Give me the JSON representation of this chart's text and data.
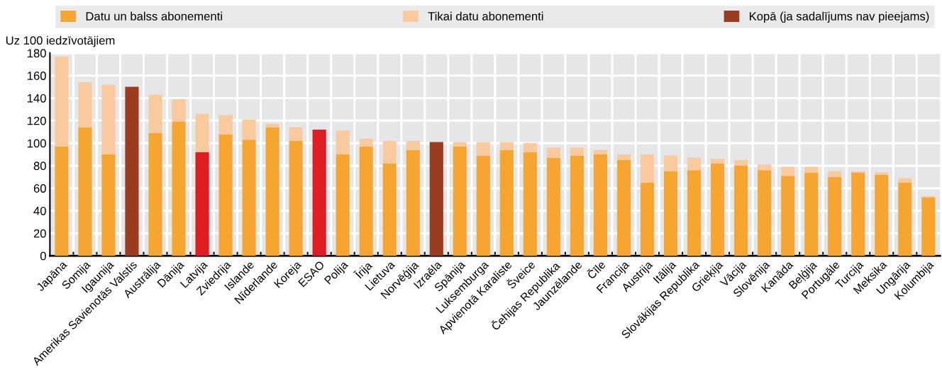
{
  "chart_data": {
    "type": "bar",
    "stacked": true,
    "ylabel": "Uz 100 iedzīvotājiem",
    "categories": [
      "Japāna",
      "Somija",
      "Igaunija",
      "Amerikas Savienotās Valstis",
      "Austrālija",
      "Dānija",
      "Latvija",
      "Zviedrija",
      "Islande",
      "Nīderlande",
      "Koreja",
      "ESAO",
      "Polija",
      "Īrija",
      "Lietuva",
      "Norvēģija",
      "Izraēla",
      "Spānija",
      "Luksemburga",
      "Apvienotā Karaliste",
      "Šveice",
      "Čehijas Republika",
      "Jaunzēlande",
      "Čīle",
      "Francija",
      "Austrija",
      "Itālija",
      "Slovākijas Republika",
      "Grieķija",
      "Vācija",
      "Slovēnija",
      "Kanāda",
      "Beļģija",
      "Portugāle",
      "Turcija",
      "Meksika",
      "Ungārija",
      "Kolumbija"
    ],
    "series": [
      {
        "name": "Datu un balss abonementi",
        "color": "#f7a531",
        "colors": [
          "#f7a531",
          "#f7a531",
          "#f7a531",
          "#f7a531",
          "#f7a531",
          "#f7a531",
          "#e01b22",
          "#f7a531",
          "#f7a531",
          "#f7a531",
          "#f7a531",
          "#f7a531",
          "#f7a531",
          "#f7a531",
          "#f7a531",
          "#f7a531",
          "#f7a531",
          "#f7a531",
          "#f7a531",
          "#f7a531",
          "#f7a531",
          "#f7a531",
          "#f7a531",
          "#f7a531",
          "#f7a531",
          "#f7a531",
          "#f7a531",
          "#f7a531",
          "#f7a531",
          "#f7a531",
          "#f7a531",
          "#f7a531",
          "#f7a531",
          "#f7a531",
          "#f7a531",
          "#f7a531",
          "#f7a531",
          "#f7a531"
        ],
        "values": [
          97,
          114,
          90,
          null,
          109,
          119,
          92,
          108,
          103,
          114,
          102,
          null,
          90,
          97,
          82,
          94,
          null,
          97,
          89,
          94,
          92,
          87,
          89,
          90,
          85,
          65,
          75,
          76,
          82,
          80,
          76,
          71,
          74,
          70,
          74,
          72,
          65,
          52
        ]
      },
      {
        "name": "Tikai datu abonementi",
        "color": "#f9ca9d",
        "values": [
          80,
          40,
          62,
          null,
          34,
          20,
          34,
          17,
          18,
          3,
          12,
          null,
          21,
          7,
          20,
          8,
          null,
          4,
          12,
          7,
          8,
          9,
          7,
          4,
          5,
          25,
          14,
          11,
          4,
          5,
          5,
          8,
          5,
          5,
          1,
          2,
          4,
          1
        ]
      },
      {
        "name": "Kopā (ja sadalījums nav pieejams)",
        "color": "#9b3b21",
        "colors": [
          "#9b3b21",
          "#9b3b21",
          "#9b3b21",
          "#9b3b21",
          "#9b3b21",
          "#9b3b21",
          "#9b3b21",
          "#9b3b21",
          "#9b3b21",
          "#9b3b21",
          "#9b3b21",
          "#e01b22",
          "#9b3b21",
          "#9b3b21",
          "#9b3b21",
          "#9b3b21",
          "#9b3b21",
          "#9b3b21",
          "#9b3b21",
          "#9b3b21",
          "#9b3b21",
          "#9b3b21",
          "#9b3b21",
          "#9b3b21",
          "#9b3b21",
          "#9b3b21",
          "#9b3b21",
          "#9b3b21",
          "#9b3b21",
          "#9b3b21",
          "#9b3b21",
          "#9b3b21",
          "#9b3b21",
          "#9b3b21",
          "#9b3b21",
          "#9b3b21",
          "#9b3b21",
          "#9b3b21"
        ],
        "values": [
          null,
          null,
          null,
          150,
          null,
          null,
          null,
          null,
          null,
          null,
          null,
          112,
          null,
          null,
          null,
          null,
          101,
          null,
          null,
          null,
          null,
          null,
          null,
          null,
          null,
          null,
          null,
          null,
          null,
          null,
          null,
          null,
          null,
          null,
          null,
          null,
          null,
          null
        ]
      }
    ],
    "ylim": [
      0,
      180
    ],
    "yticks": [
      0,
      20,
      40,
      60,
      80,
      100,
      120,
      140,
      160,
      180
    ],
    "grid": true,
    "legend": "top"
  }
}
